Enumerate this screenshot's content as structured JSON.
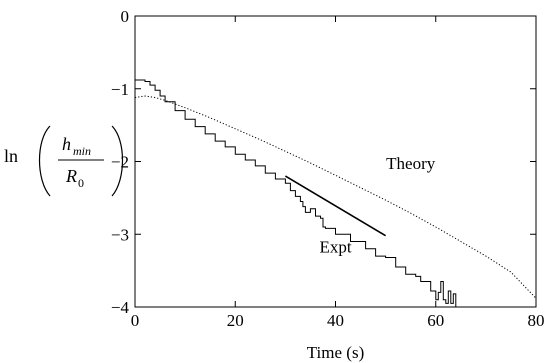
{
  "chart_data": {
    "type": "line",
    "title": "",
    "xlabel": "Time (s)",
    "ylabel": {
      "prefix": "ln",
      "numerator": "h",
      "numerator_sub": "min",
      "denominator": "R",
      "denominator_sub": "0"
    },
    "xlim": [
      0,
      80
    ],
    "ylim": [
      -4,
      0
    ],
    "xticks": [
      0,
      20,
      40,
      60,
      80
    ],
    "yticks": [
      0,
      -1,
      -2,
      -3,
      -4
    ],
    "xtick_labels": [
      "0",
      "20",
      "40",
      "60",
      "80"
    ],
    "ytick_labels": [
      "0",
      "−1",
      "−2",
      "−3",
      "−4"
    ],
    "grid": false,
    "series": [
      {
        "name": "Theory",
        "style": "dotted",
        "x": [
          0,
          2,
          4,
          6,
          8,
          10,
          15,
          20,
          25,
          30,
          35,
          40,
          45,
          50,
          55,
          60,
          65,
          70,
          75,
          80
        ],
        "y": [
          -1.12,
          -1.1,
          -1.12,
          -1.16,
          -1.21,
          -1.26,
          -1.4,
          -1.55,
          -1.7,
          -1.86,
          -2.02,
          -2.19,
          -2.36,
          -2.53,
          -2.71,
          -2.9,
          -3.1,
          -3.3,
          -3.52,
          -3.88
        ]
      },
      {
        "name": "Expt",
        "style": "solid",
        "x": [
          0,
          1,
          2,
          3,
          4,
          5,
          6,
          8,
          10,
          12,
          14,
          16,
          18,
          20,
          22,
          24,
          26,
          28,
          30,
          31,
          32,
          33,
          33.5,
          34,
          35,
          36,
          37,
          37.5,
          38,
          40,
          42,
          43,
          44,
          46,
          47,
          48,
          50,
          52,
          53,
          54,
          56,
          57,
          58,
          59,
          60,
          60.5,
          61,
          61.5,
          62,
          62.5,
          63,
          63.5,
          64
        ],
        "y": [
          -0.88,
          -0.88,
          -0.9,
          -0.95,
          -1.02,
          -1.1,
          -1.18,
          -1.3,
          -1.42,
          -1.52,
          -1.62,
          -1.72,
          -1.8,
          -1.9,
          -1.98,
          -2.06,
          -2.16,
          -2.24,
          -2.3,
          -2.4,
          -2.48,
          -2.55,
          -2.62,
          -2.7,
          -2.65,
          -2.75,
          -2.78,
          -2.9,
          -2.92,
          -3.0,
          -3.0,
          -3.1,
          -3.1,
          -3.2,
          -3.2,
          -3.3,
          -3.32,
          -3.45,
          -3.45,
          -3.55,
          -3.58,
          -3.65,
          -3.65,
          -3.78,
          -3.9,
          -3.8,
          -3.65,
          -3.9,
          -3.95,
          -3.78,
          -3.95,
          -3.82,
          -4.0
        ]
      },
      {
        "name": "",
        "style": "solid-thick",
        "x": [
          30,
          50
        ],
        "y": [
          -2.2,
          -3.02
        ]
      }
    ],
    "annotations": [
      {
        "text": "Theory",
        "x": 55,
        "y": -2.1
      },
      {
        "text": "Expt",
        "x": 40,
        "y": -3.25
      }
    ]
  }
}
